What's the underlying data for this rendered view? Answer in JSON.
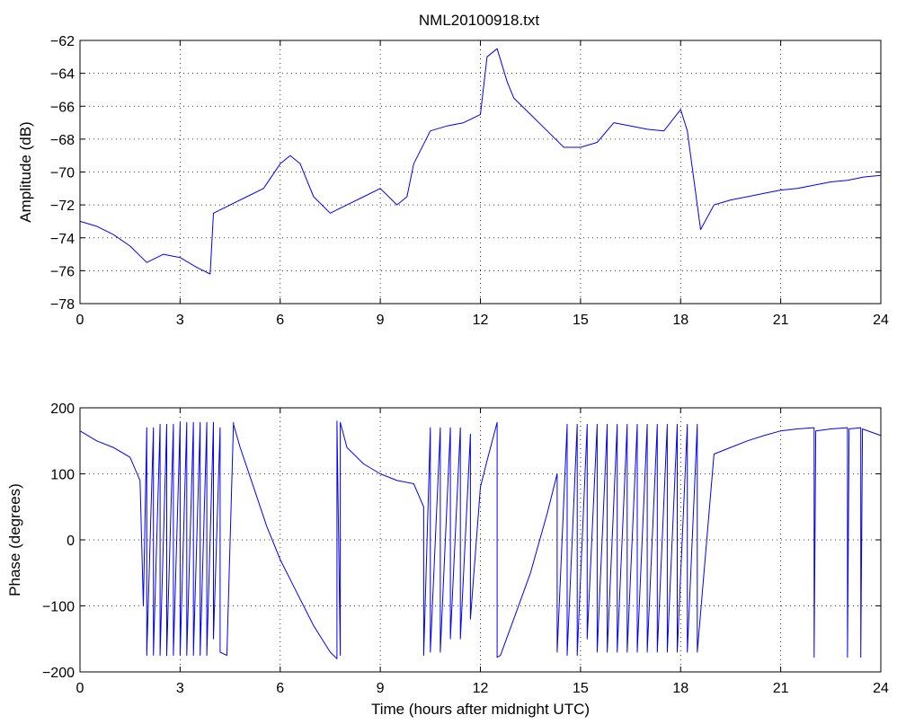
{
  "figure": {
    "title": "NML20100918.txt"
  },
  "colors": {
    "series": "#0000ff",
    "axes": "#000000",
    "background": "#ffffff"
  },
  "chart_data": [
    {
      "type": "line",
      "title": "NML20100918.txt",
      "xlabel": "",
      "ylabel": "Amplitude (dB)",
      "xlim": [
        0,
        24
      ],
      "ylim": [
        -78,
        -62
      ],
      "xticks": [
        0,
        3,
        6,
        9,
        12,
        15,
        18,
        21,
        24
      ],
      "yticks": [
        -78,
        -76,
        -74,
        -72,
        -70,
        -68,
        -66,
        -64,
        -62
      ],
      "grid": true,
      "series": [
        {
          "x": [
            0,
            0.5,
            1,
            1.5,
            2,
            2.5,
            3,
            3.5,
            3.9,
            4,
            4.5,
            5,
            5.5,
            6,
            6.3,
            6.6,
            7,
            7.5,
            8,
            8.5,
            9,
            9.5,
            9.8,
            10,
            10.5,
            11,
            11.5,
            12,
            12.2,
            12.5,
            12.8,
            13,
            13.5,
            14,
            14.5,
            15,
            15.5,
            16,
            16.5,
            17,
            17.5,
            18,
            18.2,
            18.4,
            18.6,
            19,
            19.5,
            20,
            20.5,
            21,
            21.5,
            22,
            22.5,
            23,
            23.5,
            24
          ],
          "y": [
            -73,
            -73.3,
            -73.8,
            -74.5,
            -75.5,
            -75,
            -75.2,
            -75.8,
            -76.2,
            -72.5,
            -72,
            -71.5,
            -71,
            -69.5,
            -69,
            -69.5,
            -71.5,
            -72.5,
            -72,
            -71.5,
            -71,
            -72,
            -71.5,
            -69.5,
            -67.5,
            -67.2,
            -67,
            -66.5,
            -63,
            -62.5,
            -64.5,
            -65.5,
            -66.5,
            -67.5,
            -68.5,
            -68.5,
            -68.2,
            -67,
            -67.2,
            -67.4,
            -67.5,
            -66.2,
            -67.5,
            -70.5,
            -73.5,
            -72,
            -71.7,
            -71.5,
            -71.3,
            -71.1,
            -71,
            -70.8,
            -70.6,
            -70.5,
            -70.3,
            -70.2
          ]
        }
      ]
    },
    {
      "type": "line",
      "title": "",
      "xlabel": "Time (hours after midnight UTC)",
      "ylabel": "Phase (degrees)",
      "xlim": [
        0,
        24
      ],
      "ylim": [
        -200,
        200
      ],
      "xticks": [
        0,
        3,
        6,
        9,
        12,
        15,
        18,
        21,
        24
      ],
      "yticks": [
        -200,
        -100,
        0,
        100,
        200
      ],
      "grid": true,
      "series": [
        {
          "x": [
            0,
            0.5,
            1,
            1.5,
            1.8,
            1.9,
            2.0,
            2.0,
            2.2,
            2.2,
            2.4,
            2.4,
            2.6,
            2.6,
            2.8,
            2.8,
            3.0,
            3.0,
            3.2,
            3.2,
            3.4,
            3.4,
            3.6,
            3.6,
            3.8,
            3.8,
            4.0,
            4.0,
            4.2,
            4.2,
            4.4,
            4.6,
            4.6,
            4.8,
            5.2,
            5.6,
            6.0,
            6.5,
            7.0,
            7.5,
            7.7,
            7.7,
            7.8,
            7.8,
            8.0,
            8.5,
            9.0,
            9.5,
            10.0,
            10.3,
            10.3,
            10.5,
            10.5,
            10.8,
            10.8,
            11.1,
            11.1,
            11.4,
            11.4,
            11.7,
            11.7,
            12.0,
            12.2,
            12.5,
            12.5,
            12.6,
            13.0,
            13.5,
            14.0,
            14.3,
            14.3,
            14.6,
            14.6,
            14.9,
            14.9,
            15.2,
            15.2,
            15.5,
            15.5,
            15.8,
            15.8,
            16.1,
            16.1,
            16.4,
            16.4,
            16.7,
            16.7,
            17.0,
            17.0,
            17.3,
            17.3,
            17.6,
            17.6,
            17.9,
            17.9,
            18.2,
            18.2,
            18.5,
            18.5,
            19.0,
            19.5,
            20.0,
            20.5,
            21.0,
            21.5,
            22.0,
            22.0,
            22.05,
            22.5,
            23.0,
            23.0,
            23.05,
            23.4,
            23.4,
            23.45,
            24.0
          ],
          "y": [
            165,
            150,
            140,
            125,
            90,
            -100,
            170,
            -175,
            170,
            -175,
            175,
            -175,
            175,
            -175,
            175,
            -175,
            178,
            -175,
            178,
            -175,
            178,
            -175,
            178,
            -175,
            178,
            -175,
            178,
            -150,
            170,
            -170,
            -175,
            178,
            175,
            140,
            80,
            20,
            -30,
            -80,
            -130,
            -170,
            -180,
            180,
            -175,
            178,
            140,
            115,
            100,
            90,
            85,
            50,
            -175,
            170,
            -170,
            170,
            -170,
            170,
            -150,
            170,
            -150,
            160,
            -120,
            80,
            120,
            178,
            -178,
            -175,
            -120,
            -50,
            40,
            100,
            -170,
            175,
            -175,
            175,
            -175,
            175,
            -150,
            175,
            -170,
            175,
            -170,
            175,
            -170,
            175,
            -170,
            175,
            -170,
            175,
            -170,
            175,
            -170,
            175,
            -170,
            175,
            -170,
            175,
            -170,
            175,
            -170,
            130,
            140,
            150,
            158,
            165,
            168,
            170,
            -178,
            165,
            168,
            170,
            -178,
            168,
            170,
            -178,
            168,
            158
          ]
        }
      ]
    }
  ]
}
